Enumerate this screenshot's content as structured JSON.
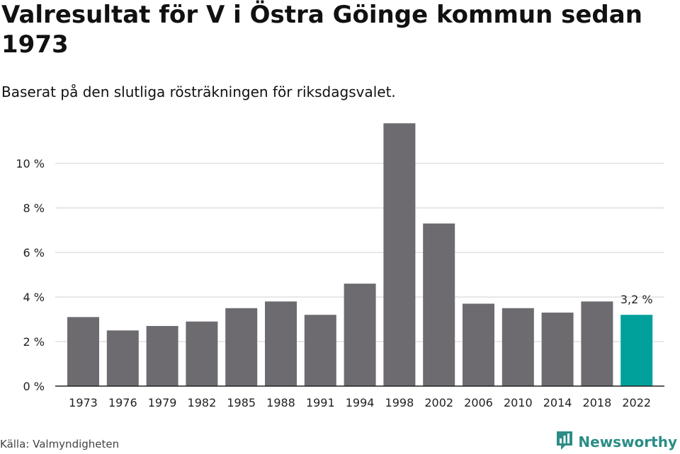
{
  "header": {
    "title": "Valresultat för V i Östra Göinge kommun sedan 1973",
    "subtitle": "Baserat på den slutliga rösträkningen för riksdagsvalet."
  },
  "footer": {
    "source": "Källa: Valmyndigheten",
    "brand": "Newsworthy",
    "brand_icon": "bar-chart-logo-icon"
  },
  "colors": {
    "bar": "#6d6b70",
    "highlight": "#00a19a",
    "grid": "#d9d9d9",
    "axis": "#222222",
    "brand": "#2a8d86"
  },
  "chart_data": {
    "type": "bar",
    "title": "Valresultat för V i Östra Göinge kommun sedan 1973",
    "subtitle": "Baserat på den slutliga rösträkningen för riksdagsvalet.",
    "xlabel": "",
    "ylabel": "",
    "categories": [
      "1973",
      "1976",
      "1979",
      "1982",
      "1985",
      "1988",
      "1991",
      "1994",
      "1998",
      "2002",
      "2006",
      "2010",
      "2014",
      "2018",
      "2022"
    ],
    "values": [
      3.1,
      2.5,
      2.7,
      2.9,
      3.5,
      3.8,
      3.2,
      4.6,
      11.8,
      7.3,
      3.7,
      3.5,
      3.3,
      3.8,
      3.2
    ],
    "ylim": [
      0,
      12
    ],
    "yticks": [
      0,
      2,
      4,
      6,
      8,
      10
    ],
    "ytick_labels": [
      "0 %",
      "2 %",
      "4 %",
      "6 %",
      "8 %",
      "10 %"
    ],
    "highlight_index": 14,
    "data_labels": [
      {
        "index": 14,
        "text": "3,2 %"
      }
    ],
    "grid": true,
    "legend": "none"
  }
}
